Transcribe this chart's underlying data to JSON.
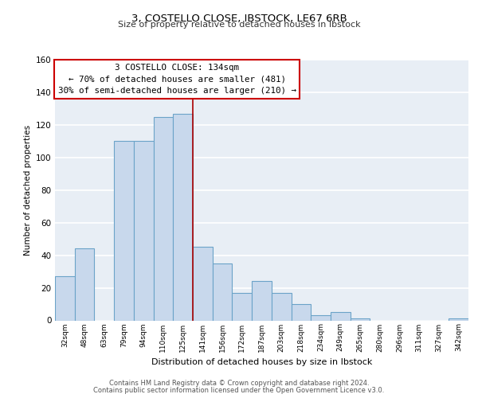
{
  "title": "3, COSTELLO CLOSE, IBSTOCK, LE67 6RB",
  "subtitle": "Size of property relative to detached houses in Ibstock",
  "xlabel": "Distribution of detached houses by size in Ibstock",
  "ylabel": "Number of detached properties",
  "bar_labels": [
    "32sqm",
    "48sqm",
    "63sqm",
    "79sqm",
    "94sqm",
    "110sqm",
    "125sqm",
    "141sqm",
    "156sqm",
    "172sqm",
    "187sqm",
    "203sqm",
    "218sqm",
    "234sqm",
    "249sqm",
    "265sqm",
    "280sqm",
    "296sqm",
    "311sqm",
    "327sqm",
    "342sqm"
  ],
  "bar_values": [
    27,
    44,
    0,
    110,
    110,
    125,
    127,
    45,
    35,
    17,
    24,
    17,
    10,
    3,
    5,
    1,
    0,
    0,
    0,
    0,
    1
  ],
  "bar_color": "#c8d8ec",
  "bar_edge_color": "#6ba3c8",
  "annotation_line1": "3 COSTELLO CLOSE: 134sqm",
  "annotation_line2": "← 70% of detached houses are smaller (481)",
  "annotation_line3": "30% of semi-detached houses are larger (210) →",
  "annotation_box_facecolor": "#ffffff",
  "annotation_box_edgecolor": "#cc0000",
  "property_line_x": 7,
  "property_line_color": "#aa0000",
  "ylim": [
    0,
    160
  ],
  "yticks": [
    0,
    20,
    40,
    60,
    80,
    100,
    120,
    140,
    160
  ],
  "plot_bg_color": "#e8eef5",
  "title_fontsize": 9.5,
  "subtitle_fontsize": 8.0,
  "footer_line1": "Contains HM Land Registry data © Crown copyright and database right 2024.",
  "footer_line2": "Contains public sector information licensed under the Open Government Licence v3.0."
}
